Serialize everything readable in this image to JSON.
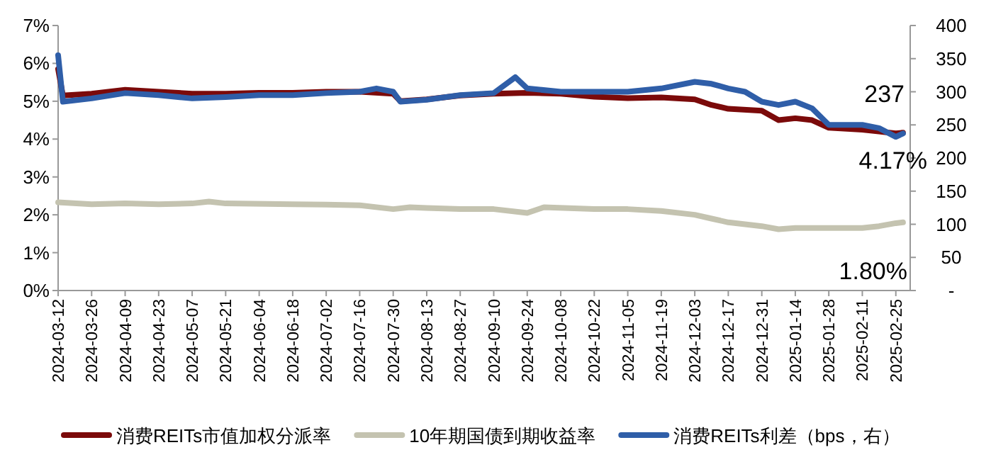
{
  "chart_data": {
    "type": "line",
    "xlim": [
      "2024-03-12",
      "2025-03-03"
    ],
    "xticks": [
      "2024-03-12",
      "2024-03-26",
      "2024-04-09",
      "2024-04-23",
      "2024-05-07",
      "2024-05-21",
      "2024-06-04",
      "2024-06-18",
      "2024-07-02",
      "2024-07-16",
      "2024-07-30",
      "2024-08-13",
      "2024-08-27",
      "2024-09-10",
      "2024-09-24",
      "2024-10-08",
      "2024-10-22",
      "2024-11-05",
      "2024-11-19",
      "2024-12-03",
      "2024-12-17",
      "2024-12-31",
      "2025-01-14",
      "2025-01-28",
      "2025-02-11",
      "2025-02-25"
    ],
    "ylim": [
      0,
      7
    ],
    "yticks": [
      {
        "value": 0,
        "label": "0%"
      },
      {
        "value": 1,
        "label": "1%"
      },
      {
        "value": 2,
        "label": "2%"
      },
      {
        "value": 3,
        "label": "3%"
      },
      {
        "value": 4,
        "label": "4%"
      },
      {
        "value": 5,
        "label": "5%"
      },
      {
        "value": 6,
        "label": "6%"
      },
      {
        "value": 7,
        "label": "7%"
      }
    ],
    "y2lim": [
      0,
      400
    ],
    "y2ticks": [
      {
        "value": 0,
        "label": "-"
      },
      50,
      100,
      150,
      200,
      250,
      300,
      350,
      400
    ],
    "legend": "bottom",
    "marker": "none",
    "line_style": "solid",
    "annotations": [
      "237",
      "4.17%",
      "1.80%"
    ],
    "series": [
      {
        "name": "消费REITs市值加权分派率",
        "color": "#7b0a0a",
        "x": [
          "2024-03-12",
          "2024-03-14",
          "2024-03-26",
          "2024-04-09",
          "2024-04-23",
          "2024-05-07",
          "2024-05-21",
          "2024-06-04",
          "2024-06-18",
          "2024-07-02",
          "2024-07-16",
          "2024-07-30",
          "2024-08-02",
          "2024-08-13",
          "2024-08-27",
          "2024-09-10",
          "2024-09-24",
          "2024-10-08",
          "2024-10-22",
          "2024-11-05",
          "2024-11-19",
          "2024-12-03",
          "2024-12-10",
          "2024-12-17",
          "2024-12-31",
          "2025-01-07",
          "2025-01-14",
          "2025-01-21",
          "2025-01-28",
          "2025-02-11",
          "2025-02-18",
          "2025-02-25",
          "2025-02-28"
        ],
        "values": [
          5.85,
          5.15,
          5.2,
          5.3,
          5.25,
          5.2,
          5.2,
          5.22,
          5.22,
          5.25,
          5.25,
          5.2,
          5.0,
          5.05,
          5.15,
          5.2,
          5.22,
          5.2,
          5.12,
          5.08,
          5.1,
          5.05,
          4.9,
          4.8,
          4.75,
          4.5,
          4.55,
          4.5,
          4.3,
          4.25,
          4.2,
          4.15,
          4.17
        ]
      },
      {
        "name": "10年期国债到期收益率",
        "color": "#c4c3b0",
        "x": [
          "2024-03-12",
          "2024-03-26",
          "2024-04-09",
          "2024-04-23",
          "2024-05-07",
          "2024-05-14",
          "2024-05-21",
          "2024-06-18",
          "2024-07-02",
          "2024-07-16",
          "2024-07-30",
          "2024-08-06",
          "2024-08-13",
          "2024-08-27",
          "2024-09-10",
          "2024-09-24",
          "2024-10-01",
          "2024-10-22",
          "2024-11-05",
          "2024-11-19",
          "2024-12-03",
          "2024-12-10",
          "2024-12-17",
          "2024-12-31",
          "2025-01-07",
          "2025-01-14",
          "2025-01-28",
          "2025-02-11",
          "2025-02-18",
          "2025-02-25",
          "2025-02-28"
        ],
        "values": [
          2.33,
          2.28,
          2.3,
          2.28,
          2.3,
          2.35,
          2.3,
          2.28,
          2.27,
          2.25,
          2.15,
          2.2,
          2.18,
          2.15,
          2.15,
          2.05,
          2.2,
          2.15,
          2.15,
          2.1,
          2.0,
          1.9,
          1.8,
          1.7,
          1.62,
          1.65,
          1.65,
          1.65,
          1.7,
          1.78,
          1.8
        ]
      },
      {
        "name": "消费REITs利差（bps，右）",
        "color": "#2f5ea8",
        "axis": "y2",
        "x": [
          "2024-03-12",
          "2024-03-14",
          "2024-03-26",
          "2024-04-09",
          "2024-04-23",
          "2024-05-07",
          "2024-05-21",
          "2024-06-04",
          "2024-06-18",
          "2024-07-02",
          "2024-07-16",
          "2024-07-23",
          "2024-07-30",
          "2024-08-02",
          "2024-08-13",
          "2024-08-27",
          "2024-09-10",
          "2024-09-19",
          "2024-09-24",
          "2024-10-08",
          "2024-10-22",
          "2024-11-05",
          "2024-11-19",
          "2024-12-03",
          "2024-12-10",
          "2024-12-17",
          "2024-12-24",
          "2024-12-31",
          "2025-01-07",
          "2025-01-14",
          "2025-01-21",
          "2025-01-28",
          "2025-02-11",
          "2025-02-18",
          "2025-02-25",
          "2025-02-28"
        ],
        "values": [
          355,
          285,
          290,
          298,
          295,
          290,
          292,
          295,
          295,
          298,
          300,
          305,
          300,
          285,
          288,
          295,
          298,
          322,
          305,
          300,
          300,
          300,
          305,
          315,
          312,
          305,
          300,
          285,
          280,
          285,
          275,
          250,
          250,
          245,
          232,
          237
        ]
      }
    ]
  }
}
